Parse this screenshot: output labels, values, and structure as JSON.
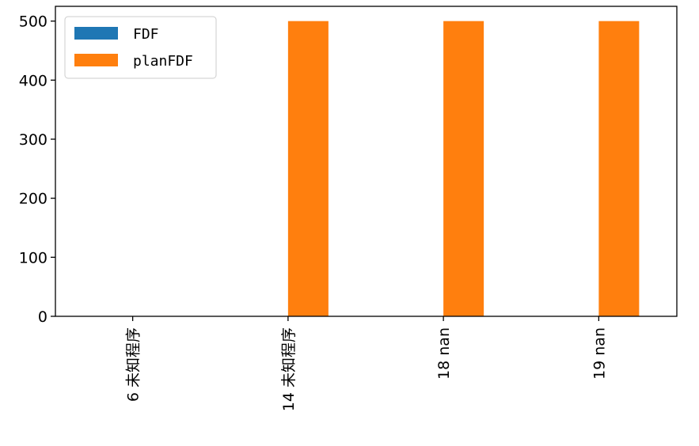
{
  "chart_data": {
    "type": "bar",
    "categories": [
      "6 未知程序",
      "14 未知程序",
      "18 nan",
      "19 nan"
    ],
    "series": [
      {
        "name": "FDF",
        "values": [
          0,
          0,
          0,
          0
        ],
        "color": "#1f77b4"
      },
      {
        "name": "planFDF",
        "values": [
          0,
          500,
          500,
          500
        ],
        "color": "#ff7f0e"
      }
    ],
    "title": "",
    "xlabel": "",
    "ylabel": "",
    "ylim": [
      0,
      525
    ],
    "yticks": [
      "0",
      "100",
      "200",
      "300",
      "400",
      "500"
    ],
    "yticks_values": [
      0,
      100,
      200,
      300,
      400,
      500
    ],
    "legend_placement": "top-left",
    "grid": false
  }
}
